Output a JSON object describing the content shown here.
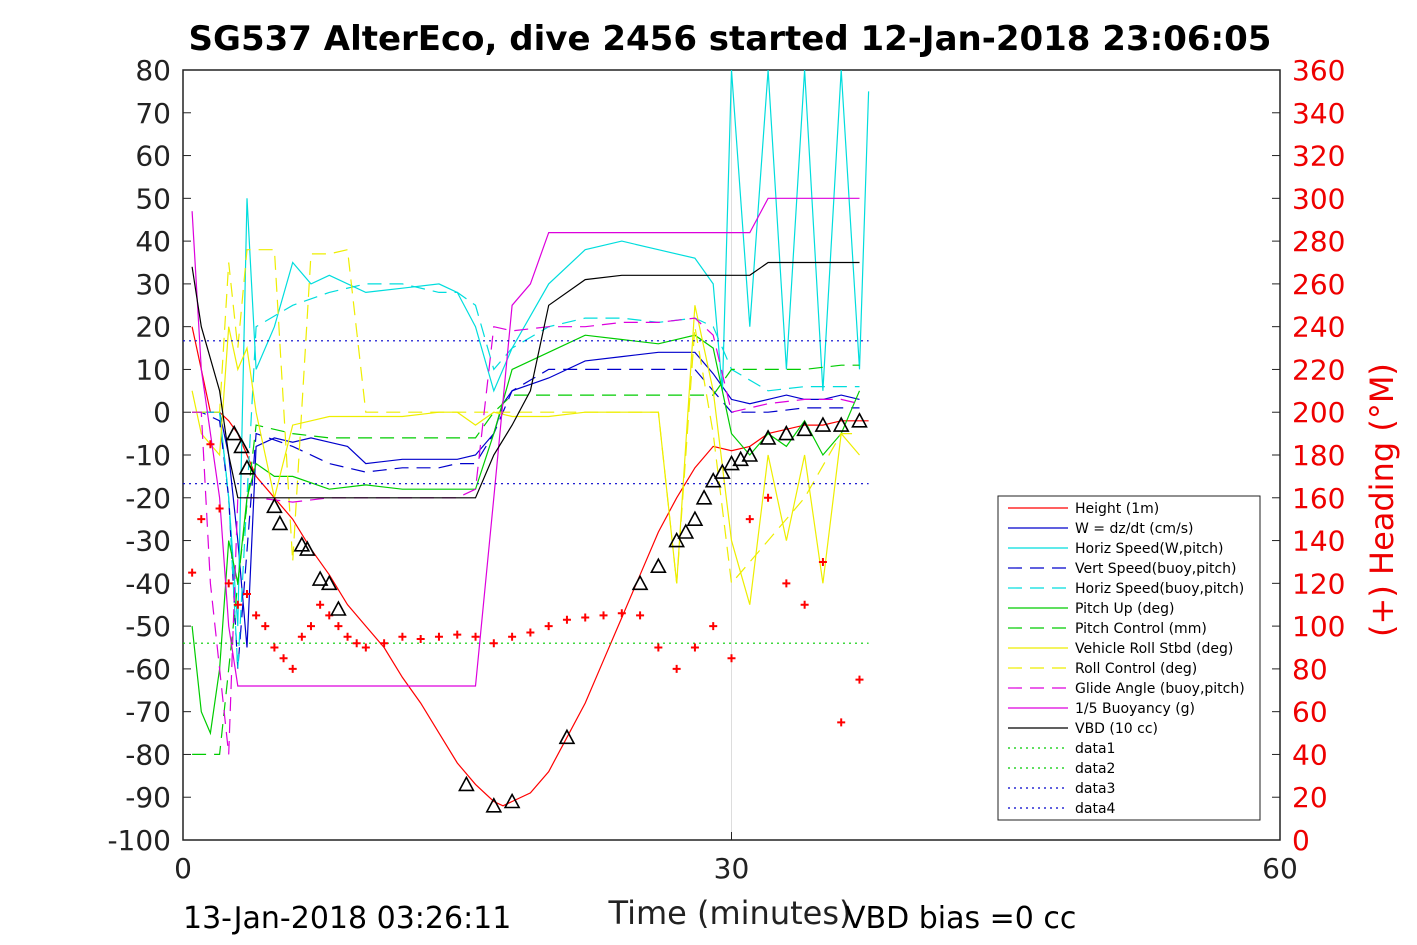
{
  "chart_data": {
    "type": "line",
    "title": "SG537 AlterEco, dive 2456 started 12-Jan-2018 23:06:05",
    "xlabel": "Time (minutes)",
    "ylabel_right": "(+) Heading (°M)",
    "xlim": [
      0,
      60
    ],
    "ylim_left": [
      -100,
      80
    ],
    "ylim_right": [
      0,
      360
    ],
    "x_ticks": [
      "0",
      "30",
      "60"
    ],
    "y_ticks_left": [
      "80",
      "70",
      "60",
      "50",
      "40",
      "30",
      "20",
      "10",
      "0",
      "-10",
      "-20",
      "-30",
      "-40",
      "-50",
      "-60",
      "-70",
      "-80",
      "-90",
      "-100"
    ],
    "y_ticks_right": [
      "360",
      "340",
      "320",
      "300",
      "280",
      "260",
      "240",
      "220",
      "200",
      "180",
      "160",
      "140",
      "120",
      "100",
      "80",
      "60",
      "40",
      "20",
      "0"
    ],
    "grid": "x",
    "legend_placement": "bottom-right",
    "footer_left": "13-Jan-2018 03:26:11",
    "footer_right": "VBD bias =0 cc",
    "legend": [
      {
        "name": "Height (1m)",
        "color": "#ff0000",
        "style": "solid"
      },
      {
        "name": "W = dz/dt (cm/s)",
        "color": "#0000cc",
        "style": "solid"
      },
      {
        "name": "Horiz Speed(W,pitch)",
        "color": "#00dddd",
        "style": "solid"
      },
      {
        "name": "Vert Speed(buoy,pitch)",
        "color": "#0000cc",
        "style": "dashed"
      },
      {
        "name": "Horiz Speed(buoy,pitch)",
        "color": "#00dddd",
        "style": "dashed"
      },
      {
        "name": "Pitch Up (deg)",
        "color": "#00cc00",
        "style": "solid"
      },
      {
        "name": "Pitch Control (mm)",
        "color": "#00cc00",
        "style": "dashed"
      },
      {
        "name": "Vehicle Roll Stbd (deg)",
        "color": "#eeee00",
        "style": "solid"
      },
      {
        "name": "Roll Control (deg)",
        "color": "#eeee00",
        "style": "dashed"
      },
      {
        "name": "Glide Angle (buoy,pitch)",
        "color": "#dd00dd",
        "style": "dashed"
      },
      {
        "name": "1/5 Buoyancy (g)",
        "color": "#dd00dd",
        "style": "solid"
      },
      {
        "name": "VBD (10 cc)",
        "color": "#000000",
        "style": "solid"
      },
      {
        "name": "data1",
        "color": "#00cc00",
        "style": "dotted"
      },
      {
        "name": "data2",
        "color": "#00cc00",
        "style": "dotted"
      },
      {
        "name": "data3",
        "color": "#0000cc",
        "style": "dotted"
      },
      {
        "name": "data4",
        "color": "#0000cc",
        "style": "dotted"
      }
    ],
    "series": [
      {
        "name": "Height (1m)",
        "x": [
          0.5,
          1,
          1.5,
          2,
          2.5,
          3,
          3.5,
          4,
          5,
          6,
          7,
          8,
          9,
          10,
          11,
          12,
          13,
          14,
          15,
          16,
          17,
          17.5,
          18,
          19,
          20,
          21,
          22,
          23,
          24,
          25,
          26,
          27,
          28,
          29,
          30,
          31,
          32,
          33,
          34,
          35,
          36,
          37,
          37.5
        ],
        "y": [
          20,
          10,
          0,
          0,
          -2,
          -5,
          -10,
          -15,
          -20,
          -25,
          -32,
          -38,
          -45,
          -50,
          -55,
          -62,
          -68,
          -75,
          -82,
          -87,
          -91,
          -92,
          -91,
          -89,
          -84,
          -76,
          -68,
          -58,
          -48,
          -38,
          -28,
          -20,
          -13,
          -8,
          -9,
          -8,
          -5,
          -4,
          -3,
          -3,
          -2,
          -2,
          -2
        ]
      },
      {
        "name": "W = dz/dt (cm/s)",
        "x": [
          0.5,
          1,
          2,
          2.5,
          3,
          3.5,
          4,
          5,
          6,
          7,
          8,
          9,
          10,
          12,
          14,
          15,
          16,
          17,
          17.5,
          18,
          20,
          22,
          24,
          26,
          28,
          29,
          30,
          31,
          32,
          33,
          34,
          35,
          36,
          37
        ],
        "y": [
          0,
          0,
          0,
          -10,
          -30,
          -55,
          -8,
          -6,
          -7,
          -6,
          -7,
          -8,
          -12,
          -11,
          -11,
          -11,
          -10,
          -5,
          2,
          5,
          8,
          12,
          13,
          14,
          14,
          9,
          3,
          2,
          3,
          4,
          3,
          3,
          4,
          3
        ]
      },
      {
        "name": "Horiz Speed(W,pitch)",
        "x": [
          0.5,
          1,
          2,
          2.5,
          3,
          3.5,
          4,
          5,
          6,
          7,
          8,
          10,
          12,
          14,
          15,
          16,
          17,
          17.5,
          18,
          20,
          22,
          24,
          26,
          28,
          29,
          29.5,
          30,
          31,
          32,
          33,
          34,
          35,
          36,
          37,
          37.5
        ],
        "y": [
          0,
          0,
          0,
          -20,
          -50,
          50,
          10,
          20,
          35,
          30,
          32,
          28,
          29,
          30,
          28,
          20,
          5,
          10,
          15,
          30,
          38,
          40,
          38,
          36,
          30,
          5,
          80,
          20,
          80,
          10,
          80,
          5,
          80,
          10,
          75
        ]
      },
      {
        "name": "Vert Speed(buoy,pitch)",
        "x": [
          0.5,
          1,
          2,
          2.5,
          3,
          4,
          6,
          8,
          10,
          12,
          14,
          15,
          16,
          17,
          18,
          20,
          22,
          24,
          26,
          28,
          29,
          30,
          32,
          34,
          36,
          37
        ],
        "y": [
          0,
          0,
          -2,
          -20,
          -60,
          -5,
          -8,
          -12,
          -14,
          -13,
          -13,
          -12,
          -12,
          -5,
          5,
          10,
          10,
          10,
          10,
          10,
          5,
          0,
          0,
          1,
          1,
          1
        ]
      },
      {
        "name": "Horiz Speed(buoy,pitch)",
        "x": [
          0.5,
          1,
          2,
          2.5,
          3,
          4,
          6,
          8,
          10,
          12,
          14,
          15,
          16,
          17,
          18,
          20,
          22,
          24,
          26,
          28,
          29,
          30,
          32,
          34,
          36,
          37
        ],
        "y": [
          0,
          0,
          0,
          -20,
          -60,
          20,
          25,
          28,
          30,
          30,
          28,
          28,
          25,
          10,
          15,
          20,
          22,
          22,
          21,
          22,
          20,
          10,
          5,
          6,
          6,
          6
        ]
      },
      {
        "name": "Pitch Up (deg)",
        "x": [
          0.5,
          1,
          1.5,
          2,
          2.5,
          3,
          3.5,
          4,
          5,
          6,
          8,
          10,
          12,
          14,
          15,
          16,
          17,
          18,
          20,
          22,
          24,
          26,
          28,
          29,
          30,
          31,
          32,
          33,
          34,
          35,
          36,
          37
        ],
        "y": [
          -50,
          -70,
          -75,
          -60,
          -30,
          -40,
          -20,
          -12,
          -15,
          -15,
          -18,
          -17,
          -18,
          -18,
          -18,
          -18,
          -5,
          10,
          14,
          18,
          17,
          16,
          18,
          15,
          -5,
          -10,
          -5,
          -8,
          -2,
          -10,
          -5,
          5
        ]
      },
      {
        "name": "Pitch Control (mm)",
        "x": [
          0.5,
          1,
          2,
          2.5,
          3,
          4,
          6,
          8,
          10,
          12,
          14,
          15,
          16,
          17,
          18,
          20,
          22,
          24,
          26,
          28,
          29,
          30,
          32,
          34,
          36,
          37
        ],
        "y": [
          -80,
          -80,
          -80,
          -60,
          -40,
          -3,
          -5,
          -6,
          -6,
          -6,
          -6,
          -6,
          -6,
          0,
          4,
          4,
          4,
          4,
          4,
          4,
          4,
          10,
          10,
          10,
          11,
          11
        ]
      },
      {
        "name": "Vehicle Roll Stbd (deg)",
        "x": [
          0.5,
          1,
          2,
          2.5,
          3,
          3.5,
          4,
          5,
          6,
          7,
          8,
          9,
          10,
          12,
          14,
          15,
          16,
          17,
          18,
          20,
          22,
          24,
          26,
          27,
          28,
          29,
          30,
          31,
          32,
          33,
          34,
          35,
          36,
          37
        ],
        "y": [
          5,
          -5,
          -10,
          20,
          10,
          15,
          0,
          -20,
          -3,
          -2,
          -1,
          -1,
          -1,
          -1,
          0,
          0,
          -3,
          0,
          -1,
          -1,
          0,
          0,
          0,
          -40,
          25,
          5,
          -30,
          -45,
          -10,
          -30,
          -10,
          -40,
          -5,
          -10
        ]
      },
      {
        "name": "Roll Control (deg)",
        "x": [
          0.5,
          1,
          2,
          2.5,
          3,
          3.5,
          4,
          5,
          6,
          7,
          8,
          9,
          10,
          12,
          14,
          16,
          18,
          20,
          22,
          24,
          26,
          27,
          28,
          29,
          30,
          32,
          34,
          36,
          37
        ],
        "y": [
          0,
          0,
          0,
          35,
          15,
          38,
          38,
          38,
          -35,
          37,
          37,
          38,
          0,
          0,
          0,
          0,
          0,
          0,
          0,
          0,
          0,
          -40,
          20,
          -5,
          -40,
          -30,
          -20,
          -5,
          -5
        ]
      },
      {
        "name": "Glide Angle (buoy,pitch)",
        "x": [
          0.5,
          1,
          1.5,
          2,
          2.5,
          3,
          4,
          6,
          8,
          10,
          12,
          14,
          15,
          16,
          17,
          18,
          20,
          22,
          24,
          26,
          28,
          29,
          30,
          32,
          34,
          36,
          37
        ],
        "y": [
          0,
          0,
          -40,
          -60,
          -80,
          -20,
          -20,
          -21,
          -20,
          -20,
          -20,
          -20,
          -20,
          -18,
          20,
          19,
          20,
          20,
          21,
          21,
          22,
          18,
          0,
          2,
          3,
          3,
          2
        ]
      },
      {
        "name": "1/5 Buoyancy (g)",
        "x": [
          0.5,
          1,
          2,
          2.5,
          3,
          3.5,
          4,
          6,
          8,
          10,
          12,
          14,
          15,
          16,
          17,
          18,
          19,
          20,
          22,
          24,
          26,
          28,
          29,
          30,
          31,
          32,
          33,
          34,
          35,
          36,
          37
        ],
        "y": [
          47,
          10,
          -20,
          -50,
          -64,
          -64,
          -64,
          -64,
          -64,
          -64,
          -64,
          -64,
          -64,
          -64,
          -20,
          25,
          30,
          42,
          42,
          42,
          42,
          42,
          42,
          42,
          42,
          50,
          50,
          50,
          50,
          50,
          50
        ]
      },
      {
        "name": "VBD (10 cc)",
        "x": [
          0.5,
          1,
          2,
          2.5,
          3,
          4,
          6,
          8,
          10,
          12,
          14,
          15,
          16,
          17,
          18,
          19,
          20,
          22,
          24,
          26,
          28,
          29,
          30,
          31,
          32,
          34,
          36,
          37
        ],
        "y": [
          34,
          20,
          5,
          -10,
          -20,
          -20,
          -20,
          -20,
          -20,
          -20,
          -20,
          -20,
          -20,
          -10,
          -3,
          5,
          25,
          31,
          32,
          32,
          32,
          32,
          32,
          32,
          35,
          35,
          35,
          35
        ]
      },
      {
        "name": "data1",
        "x": [
          0,
          37.5
        ],
        "y": [
          -54,
          -54
        ]
      },
      {
        "name": "data3",
        "x": [
          0,
          37.5
        ],
        "y": [
          16.7,
          16.7
        ]
      },
      {
        "name": "data4",
        "x": [
          0,
          37.5
        ],
        "y": [
          -16.7,
          -16.7
        ]
      }
    ],
    "heading": {
      "x": [
        0.5,
        1,
        1.5,
        2,
        2.5,
        3,
        3.5,
        4,
        4.5,
        5,
        5.5,
        6,
        6.5,
        7,
        7.5,
        8,
        8.5,
        9,
        9.5,
        10,
        11,
        12,
        13,
        14,
        15,
        16,
        17,
        18,
        19,
        20,
        21,
        22,
        23,
        24,
        25,
        26,
        27,
        28,
        29,
        30,
        31,
        32,
        33,
        34,
        35,
        36,
        37
      ],
      "y": [
        125,
        150,
        185,
        155,
        120,
        110,
        115,
        105,
        100,
        90,
        85,
        80,
        95,
        100,
        110,
        105,
        100,
        95,
        92,
        90,
        92,
        95,
        94,
        95,
        96,
        95,
        92,
        95,
        97,
        100,
        103,
        104,
        105,
        106,
        105,
        90,
        80,
        90,
        100,
        85,
        150,
        160,
        120,
        110,
        130,
        55,
        75
      ]
    },
    "markers": {
      "x": [
        2.8,
        3.2,
        3.5,
        5,
        5.3,
        6.5,
        6.8,
        7.5,
        8,
        8.5,
        15.5,
        17,
        18,
        21,
        25,
        26,
        27,
        27.5,
        28,
        28.5,
        29,
        29.5,
        30,
        30.5,
        31,
        32,
        33,
        34,
        35,
        36,
        37
      ],
      "y": [
        -5,
        -8,
        -13,
        -22,
        -26,
        -31,
        -32,
        -39,
        -40,
        -46,
        -87,
        -92,
        -91,
        -76,
        -40,
        -36,
        -30,
        -28,
        -25,
        -20,
        -16,
        -14,
        -12,
        -11,
        -10,
        -6,
        -5,
        -4,
        -3,
        -3,
        -2
      ]
    }
  }
}
